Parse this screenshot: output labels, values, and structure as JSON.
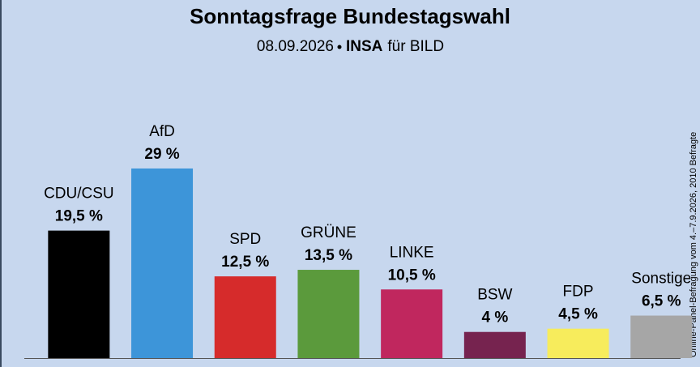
{
  "chart_data": {
    "type": "bar",
    "title": "Sonntagsfrage Bundestagswahl",
    "date": "08.09.2026",
    "institute": "INSA",
    "client": "für BILD",
    "note": "Online-Panel-Befragung vom 4.–7.9.2026, 2010 Befragte",
    "categories": [
      "CDU/CSU",
      "AfD",
      "SPD",
      "GRÜNE",
      "LINKE",
      "BSW",
      "FDP",
      "Sonstige"
    ],
    "values": [
      19.5,
      29,
      12.5,
      13.5,
      10.5,
      4,
      4.5,
      6.5
    ],
    "value_labels": [
      "19,5 %",
      "29 %",
      "12,5 %",
      "13,5 %",
      "10,5 %",
      "4 %",
      "4,5 %",
      "6,5 %"
    ],
    "colors": [
      "#000000",
      "#3d95d9",
      "#d62b2b",
      "#5b9a3c",
      "#c0275e",
      "#76234f",
      "#f7ec5c",
      "#a6a6a6"
    ]
  }
}
